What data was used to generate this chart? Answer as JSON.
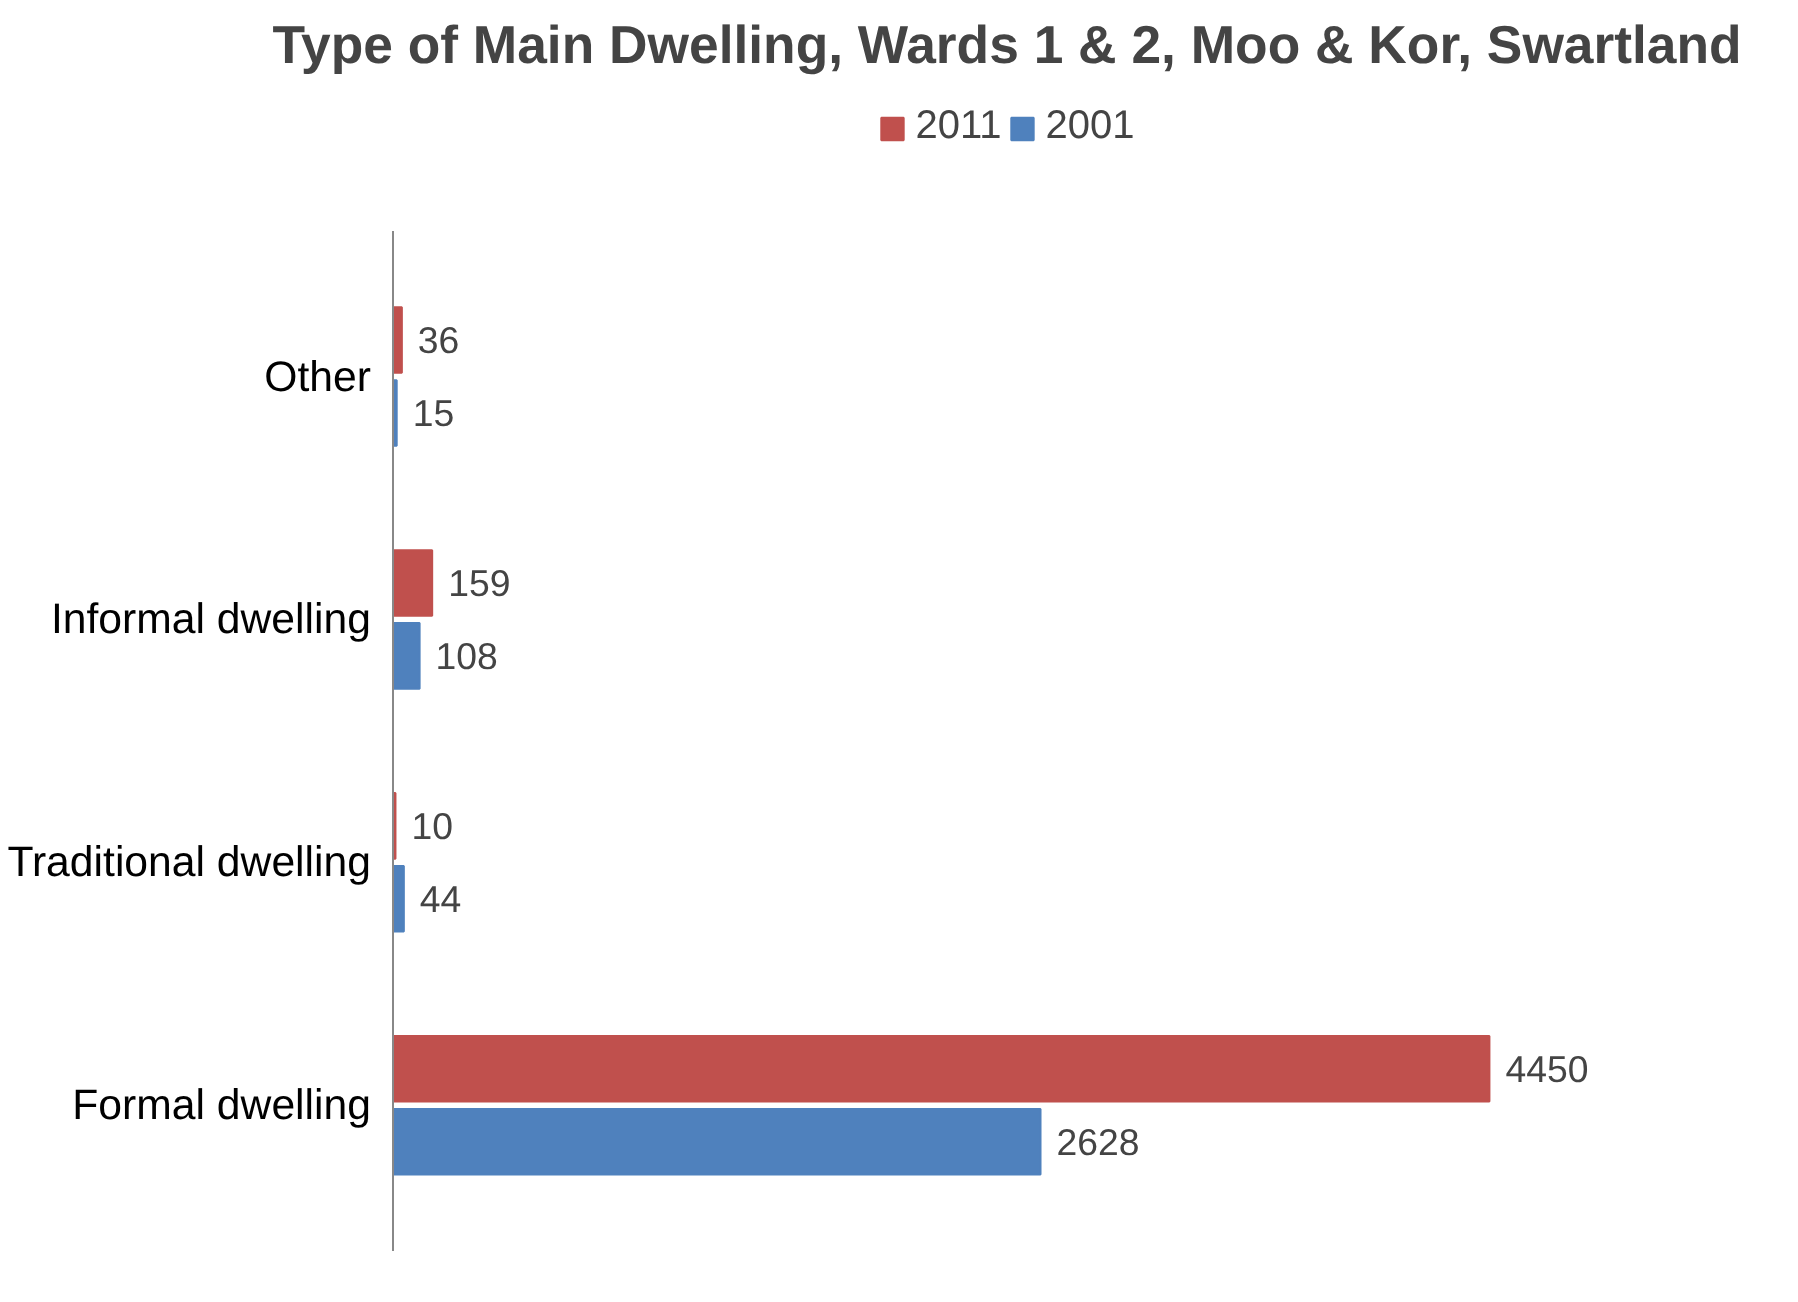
{
  "chart_data": {
    "type": "bar",
    "orientation": "horizontal",
    "title": "Type of Main Dwelling, Wards 1 & 2, Moo & Kor, Swartland",
    "categories": [
      "Other",
      "Informal dwelling",
      "Traditional dwelling",
      "Formal dwelling"
    ],
    "series": [
      {
        "name": "2011",
        "color": "#c0504d",
        "values": [
          36,
          159,
          10,
          4450
        ]
      },
      {
        "name": "2001",
        "color": "#4f81bd",
        "values": [
          15,
          108,
          44,
          2628
        ]
      }
    ],
    "tick_labels": "y",
    "data_labels": true,
    "legend": "top",
    "grid": false
  }
}
